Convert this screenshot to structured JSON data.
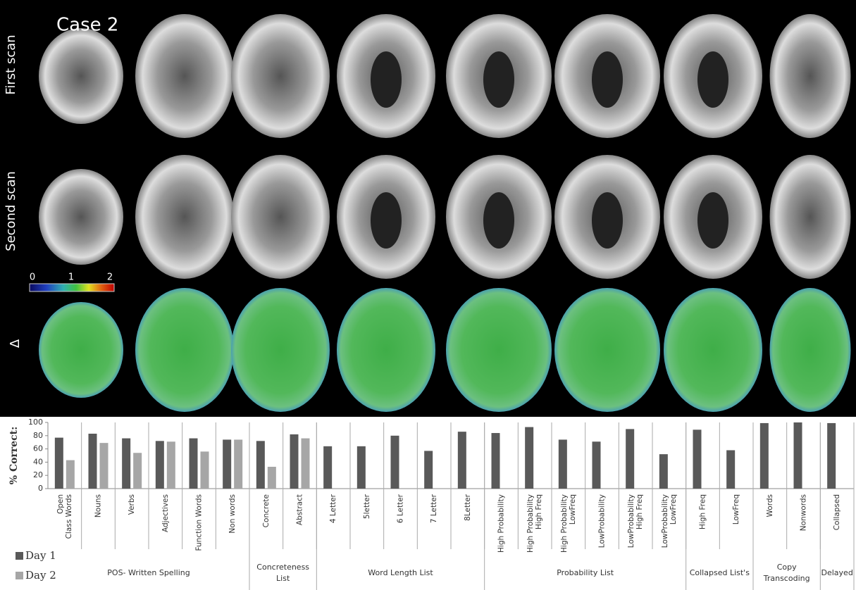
{
  "figure": {
    "title": "Case 2",
    "row_labels": [
      "First scan",
      "Second scan",
      "Δ"
    ],
    "colorbar": {
      "ticks": [
        0,
        1,
        2
      ]
    }
  },
  "chart_data": {
    "type": "bar",
    "ylabel": "% Correct:",
    "groups": [
      {
        "label": [
          "POS- Written Spelling"
        ],
        "categories": [
          [
            "Open",
            "Class Words"
          ],
          [
            "Nouns"
          ],
          [
            "Verbs"
          ],
          [
            "Adjectives"
          ],
          [
            "Function Words"
          ],
          [
            "Non words"
          ]
        ]
      },
      {
        "label": [
          "Concreteness",
          "List"
        ],
        "categories": [
          [
            "Concrete"
          ],
          [
            "Abstract"
          ]
        ]
      },
      {
        "label": [
          "Word Length List"
        ],
        "categories": [
          [
            "4 Letter"
          ],
          [
            "5letter"
          ],
          [
            "6 Letter"
          ],
          [
            "7 Letter"
          ],
          [
            "8Letter"
          ]
        ]
      },
      {
        "label": [
          "Probability List"
        ],
        "categories": [
          [
            "High Probability"
          ],
          [
            "High Probability",
            "High Freq"
          ],
          [
            "High Probability",
            "LowFreq"
          ],
          [
            "LowProbability"
          ],
          [
            "LowProbability",
            "High Freq"
          ],
          [
            "LowProbability",
            "LowFreq"
          ]
        ]
      },
      {
        "label": [
          "Collapsed List's"
        ],
        "categories": [
          [
            "High Freq"
          ],
          [
            "LowFreq"
          ]
        ]
      },
      {
        "label": [
          "Copy",
          "Transcoding"
        ],
        "categories": [
          [
            "Words"
          ],
          [
            "Nonwords"
          ]
        ]
      },
      {
        "label": [
          "Delayed"
        ],
        "categories": [
          [
            "Collapsed"
          ]
        ]
      }
    ],
    "series": [
      {
        "name": "Day 1",
        "color": "#595959",
        "values": [
          77,
          83,
          76,
          72,
          76,
          74,
          72,
          82,
          64,
          64,
          80,
          57,
          86,
          84,
          93,
          74,
          71,
          90,
          52,
          89,
          58,
          99,
          100,
          99
        ]
      },
      {
        "name": "Day 2",
        "color": "#a6a6a6",
        "values": [
          43,
          69,
          54,
          71,
          56,
          74,
          33,
          76,
          null,
          null,
          null,
          null,
          null,
          null,
          null,
          null,
          null,
          null,
          null,
          null,
          null,
          null,
          null,
          null
        ]
      }
    ],
    "ylim": [
      0,
      100
    ],
    "yticks": [
      0,
      20,
      40,
      60,
      80,
      100
    ]
  }
}
